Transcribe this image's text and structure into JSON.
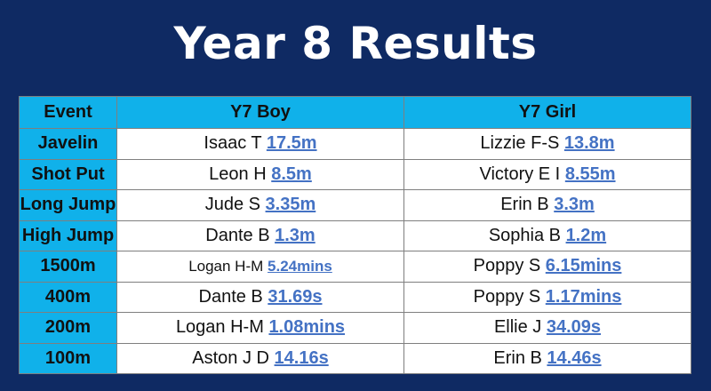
{
  "title": "Year 8 Results",
  "colors": {
    "background": "#0f2a63",
    "header_fill": "#10b1ea",
    "link": "#4472c4"
  },
  "table": {
    "headers": [
      "Event",
      "Y7 Boy",
      "Y7 Girl"
    ],
    "rows": [
      {
        "event": "Javelin",
        "boy_name": "Isaac T",
        "boy_result": "17.5m",
        "girl_name": "Lizzie F-S",
        "girl_result": "13.8m"
      },
      {
        "event": "Shot Put",
        "boy_name": "Leon H",
        "boy_result": "8.5m",
        "girl_name": "Victory E I",
        "girl_result": "8.55m"
      },
      {
        "event": "Long Jump",
        "boy_name": "Jude S",
        "boy_result": "3.35m",
        "girl_name": "Erin B",
        "girl_result": "3.3m"
      },
      {
        "event": "High Jump",
        "boy_name": "Dante B",
        "boy_result": "1.3m",
        "girl_name": "Sophia B",
        "girl_result": "1.2m"
      },
      {
        "event": "1500m",
        "boy_name": "Logan H-M",
        "boy_result": "5.24mins",
        "girl_name": "Poppy S",
        "girl_result": "6.15mins"
      },
      {
        "event": "400m",
        "boy_name": "Dante B",
        "boy_result": "31.69s",
        "girl_name": "Poppy S",
        "girl_result": "1.17mins"
      },
      {
        "event": "200m",
        "boy_name": "Logan H-M",
        "boy_result": "1.08mins",
        "girl_name": "Ellie J",
        "girl_result": "34.09s"
      },
      {
        "event": "100m",
        "boy_name": "Aston J D",
        "boy_result": "14.16s",
        "girl_name": "Erin B",
        "girl_result": "14.46s"
      }
    ]
  }
}
